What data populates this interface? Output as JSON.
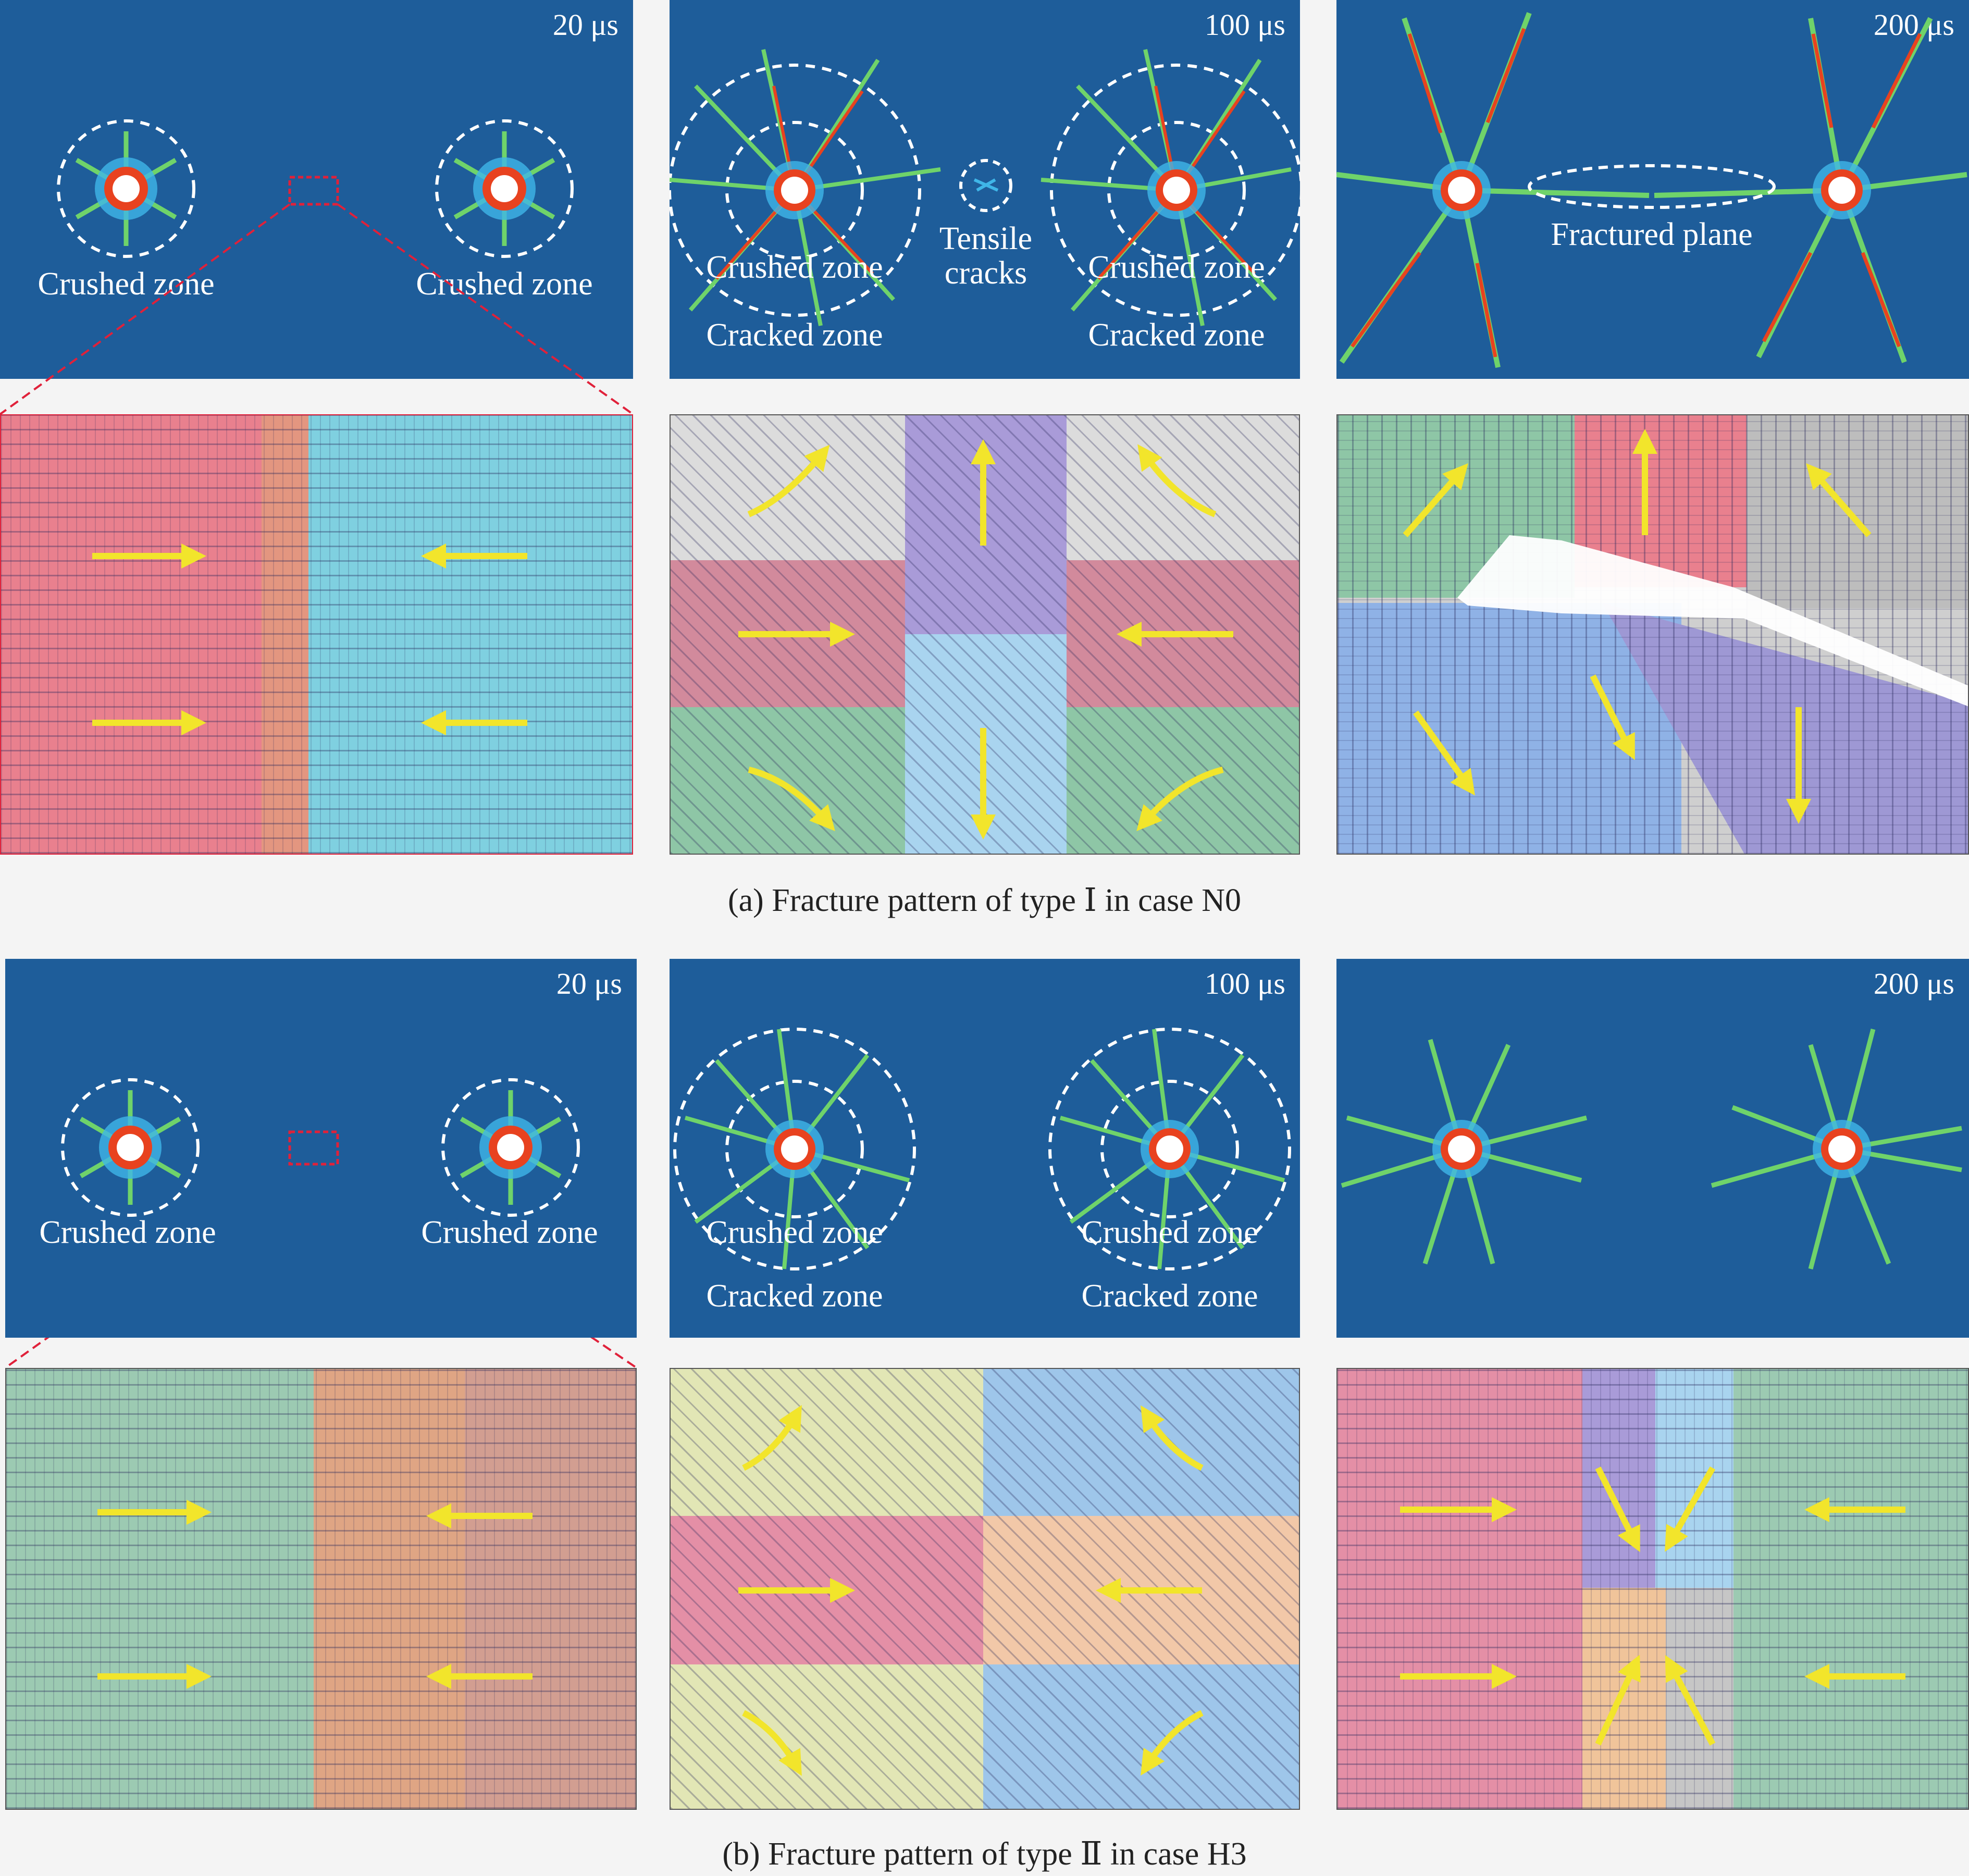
{
  "rows": [
    {
      "id": "a",
      "caption": "(a) Fracture pattern of type Ⅰ in case N0",
      "panels": [
        {
          "time": "20 μs",
          "labels": [
            "Crushed zone",
            "Crushed zone"
          ]
        },
        {
          "time": "100 μs",
          "labels": [
            "Crushed zone",
            "Cracked zone",
            "Tensile cracks",
            "Crushed zone",
            "Cracked zone"
          ]
        },
        {
          "time": "200 μs",
          "labels": [
            "Fractured plane"
          ]
        }
      ]
    },
    {
      "id": "b",
      "caption": "(b) Fracture pattern of type Ⅱ in case H3",
      "panels": [
        {
          "time": "20 μs",
          "labels": [
            "Crushed zone",
            "Crushed zone"
          ]
        },
        {
          "time": "100 μs",
          "labels": [
            "Crushed zone",
            "Cracked zone",
            "Crushed zone",
            "Cracked zone"
          ]
        },
        {
          "time": "200 μs",
          "labels": []
        }
      ]
    }
  ],
  "colors": {
    "background": "#1e5d9a",
    "crack_red": "#e8421f",
    "crack_green": "#6fd36a",
    "crack_cyan": "#3fb6e8",
    "arrow_yellow": "#f2e52b",
    "zoom_box": "#e0213a"
  }
}
